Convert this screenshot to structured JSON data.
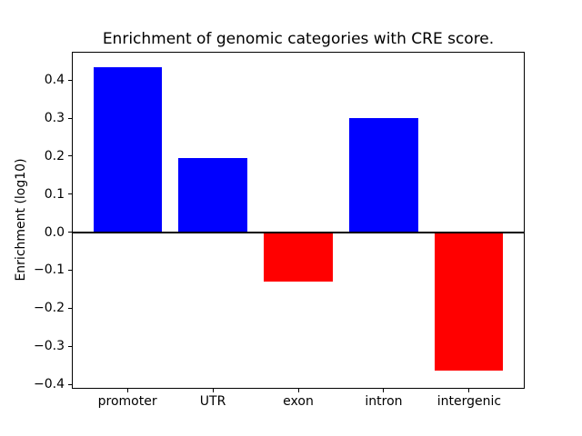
{
  "chart_data": {
    "type": "bar",
    "title": "Enrichment of genomic categories with CRE score.",
    "xlabel": "",
    "ylabel": "Enrichment (log10)",
    "categories": [
      "promoter",
      "UTR",
      "exon",
      "intron",
      "intergenic"
    ],
    "values": [
      0.433,
      0.195,
      -0.13,
      0.301,
      -0.365
    ],
    "positive_color": "#0000ff",
    "negative_color": "#ff0000",
    "zero_line_color": "#000000",
    "ylim": [
      -0.41,
      0.473
    ],
    "xlim": [
      -0.64,
      4.64
    ],
    "bar_width": 0.8,
    "yticks": [
      -0.4,
      -0.3,
      -0.2,
      -0.1,
      0.0,
      0.1,
      0.2,
      0.3,
      0.4
    ],
    "ytick_labels": [
      "−0.4",
      "−0.3",
      "−0.2",
      "−0.1",
      "0.0",
      "0.1",
      "0.2",
      "0.3",
      "0.4"
    ],
    "grid": false,
    "legend": "none",
    "background_color": "#ffffff",
    "text_color": "#000000"
  }
}
